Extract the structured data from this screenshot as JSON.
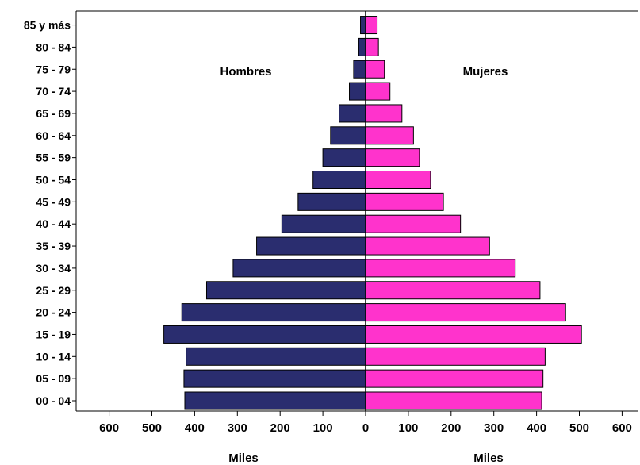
{
  "chart_data": {
    "type": "bar",
    "orientation": "horizontal-population-pyramid",
    "categories": [
      "00 - 04",
      "05 - 09",
      "10 - 14",
      "15 - 19",
      "20 - 24",
      "25 - 29",
      "30 - 34",
      "35 - 39",
      "40 - 44",
      "45 - 49",
      "50 - 54",
      "55 - 59",
      "60 - 64",
      "65 - 69",
      "70 - 74",
      "75 - 79",
      "80 - 84",
      "85 y más"
    ],
    "series": [
      {
        "name": "Hombres",
        "color": "#2a2d6f",
        "values": [
          423,
          425,
          420,
          472,
          430,
          372,
          310,
          255,
          196,
          158,
          123,
          100,
          82,
          62,
          38,
          28,
          16,
          12
        ]
      },
      {
        "name": "Mujeres",
        "color": "#ff33cc",
        "values": [
          412,
          415,
          420,
          505,
          468,
          408,
          350,
          290,
          222,
          182,
          152,
          126,
          112,
          85,
          57,
          44,
          30,
          27
        ]
      }
    ],
    "side_labels": {
      "left": "Hombres",
      "right": "Mujeres"
    },
    "xlabel_left": "Miles",
    "xlabel_right": "Miles",
    "xticks_left": [
      "600",
      "500",
      "400",
      "300",
      "200",
      "100",
      "0"
    ],
    "xticks_right": [
      "100",
      "200",
      "300",
      "400",
      "500",
      "600"
    ],
    "xlim": [
      0,
      600
    ],
    "grid": false,
    "legend": "none"
  }
}
